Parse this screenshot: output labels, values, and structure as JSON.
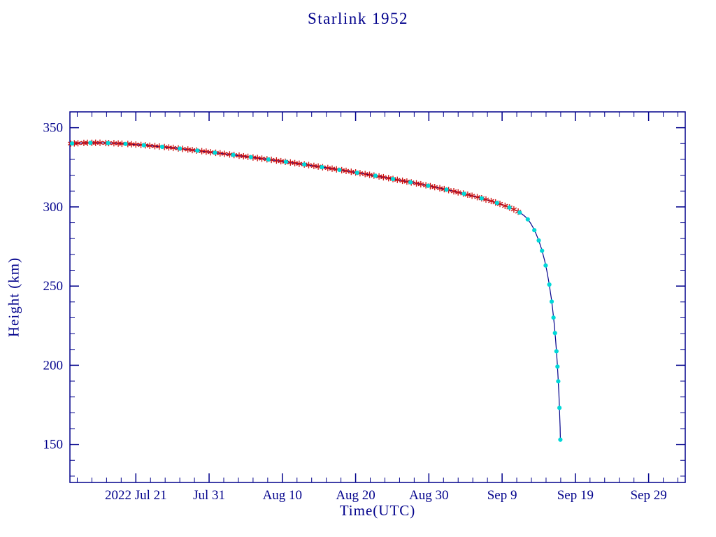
{
  "chart_data": {
    "type": "line",
    "title": "Starlink 1952",
    "xlabel": "Time(UTC)",
    "ylabel": "Height (km)",
    "x_origin_date": "2022 Jul 12",
    "xlim_days": [
      0,
      84
    ],
    "ylim": [
      126,
      360
    ],
    "x_ticks": [
      {
        "day": 9,
        "label": "2022 Jul 21"
      },
      {
        "day": 19,
        "label": "Jul 31"
      },
      {
        "day": 29,
        "label": "Aug 10"
      },
      {
        "day": 39,
        "label": "Aug 20"
      },
      {
        "day": 49,
        "label": "Aug 30"
      },
      {
        "day": 59,
        "label": "Sep 9"
      },
      {
        "day": 69,
        "label": "Sep 19"
      },
      {
        "day": 79,
        "label": "Sep 29"
      }
    ],
    "x_minor_tick_days": 2,
    "y_ticks": [
      150,
      200,
      250,
      300,
      350
    ],
    "y_minor_tick_km": 10,
    "colors": {
      "axis": "#00008b",
      "line": "#00008b",
      "asterisk": "#cc1111",
      "dot": "#00d8d8",
      "background": "#ffffff"
    },
    "curve": [
      [
        0,
        340.0
      ],
      [
        2,
        340.4
      ],
      [
        4,
        340.5
      ],
      [
        6,
        340.2
      ],
      [
        8,
        339.7
      ],
      [
        10,
        339.0
      ],
      [
        12,
        338.2
      ],
      [
        14,
        337.3
      ],
      [
        16,
        336.3
      ],
      [
        18,
        335.2
      ],
      [
        20,
        334.1
      ],
      [
        22,
        333.0
      ],
      [
        24,
        331.8
      ],
      [
        26,
        330.6
      ],
      [
        28,
        329.4
      ],
      [
        30,
        328.1
      ],
      [
        32,
        326.8
      ],
      [
        34,
        325.4
      ],
      [
        36,
        324.0
      ],
      [
        38,
        322.5
      ],
      [
        40,
        321.0
      ],
      [
        42,
        319.4
      ],
      [
        44,
        317.7
      ],
      [
        46,
        316.0
      ],
      [
        48,
        314.2
      ],
      [
        50,
        312.3
      ],
      [
        52,
        310.3
      ],
      [
        54,
        308.1
      ],
      [
        56,
        305.7
      ],
      [
        57,
        304.4
      ],
      [
        58,
        303.0
      ],
      [
        59,
        301.4
      ],
      [
        60,
        299.6
      ],
      [
        61,
        297.6
      ],
      [
        61.5,
        296.2
      ],
      [
        62,
        294.5
      ],
      [
        62.3,
        293.2
      ],
      [
        62.6,
        291.6
      ],
      [
        62.9,
        289.6
      ],
      [
        63.2,
        287.2
      ],
      [
        63.6,
        283.4
      ],
      [
        64,
        278.8
      ],
      [
        64.4,
        273.2
      ],
      [
        64.8,
        266.2
      ],
      [
        65.1,
        259.8
      ],
      [
        65.4,
        252.2
      ],
      [
        65.7,
        242.8
      ],
      [
        65.9,
        235.4
      ],
      [
        66.1,
        226.6
      ],
      [
        66.3,
        216.2
      ],
      [
        66.45,
        207.0
      ],
      [
        66.55,
        200.0
      ],
      [
        66.65,
        191.8
      ],
      [
        66.75,
        182.2
      ],
      [
        66.82,
        174.4
      ],
      [
        66.88,
        166.6
      ],
      [
        66.92,
        160.6
      ],
      [
        66.95,
        153.0
      ]
    ],
    "series": [
      {
        "name": "decay-curve-line",
        "marker": "line",
        "color_key": "line"
      },
      {
        "name": "red-asterisk-markers",
        "marker": "asterisk",
        "color_key": "asterisk",
        "days": [
          0.1,
          0.6,
          1.1,
          1.9,
          2.4,
          3.0,
          3.5,
          4.1,
          4.9,
          5.3,
          6.0,
          6.6,
          7.1,
          7.9,
          8.4,
          9.0,
          9.7,
          10.3,
          10.9,
          11.6,
          12.2,
          12.9,
          13.5,
          14.1,
          14.8,
          15.4,
          16.1,
          16.7,
          17.3,
          18.0,
          18.6,
          19.2,
          19.9,
          20.5,
          21.1,
          21.8,
          22.4,
          23.1,
          23.7,
          24.3,
          25.0,
          25.6,
          26.2,
          26.9,
          27.5,
          28.2,
          28.8,
          29.4,
          30.1,
          30.7,
          31.3,
          32.0,
          32.6,
          33.3,
          33.9,
          34.5,
          35.2,
          35.8,
          36.4,
          37.1,
          37.7,
          38.4,
          39.0,
          39.6,
          40.3,
          40.9,
          41.5,
          42.2,
          42.8,
          43.5,
          44.1,
          44.7,
          45.4,
          46.0,
          46.6,
          47.3,
          47.9,
          48.6,
          49.2,
          49.8,
          50.5,
          51.1,
          51.7,
          52.4,
          53.0,
          53.7,
          54.3,
          54.9,
          55.6,
          56.2,
          56.8,
          57.5,
          58.1,
          58.7,
          59.4,
          60.0,
          60.6,
          61.2
        ]
      },
      {
        "name": "cyan-dot-markers",
        "marker": "dot",
        "color_key": "dot",
        "days": [
          0.3,
          2.8,
          5.2,
          7.6,
          10.1,
          12.6,
          15.0,
          17.4,
          19.8,
          22.3,
          24.7,
          27.1,
          29.5,
          32.0,
          34.4,
          36.8,
          39.2,
          41.7,
          44.1,
          46.5,
          48.9,
          51.4,
          53.8,
          56.2,
          58.3,
          60.0,
          61.4,
          62.5,
          63.4,
          64.0,
          64.45,
          64.95,
          65.44,
          65.77,
          66.02,
          66.22,
          66.42,
          66.56,
          66.67,
          66.83,
          66.95
        ]
      }
    ]
  }
}
